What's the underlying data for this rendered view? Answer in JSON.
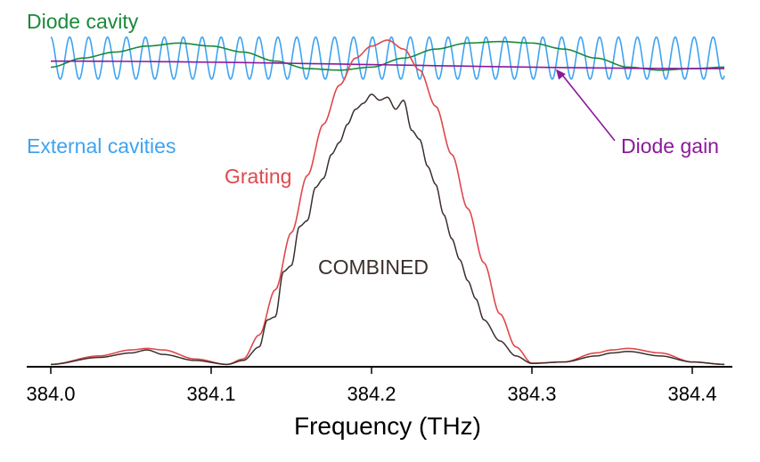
{
  "chart_data": {
    "type": "line",
    "xlabel": "Frequency (THz)",
    "xlim": [
      383.985,
      384.425
    ],
    "xticks": [
      "384.0",
      "384.1",
      "384.2",
      "384.3",
      "384.4"
    ],
    "xtick_values": [
      384.0,
      384.1,
      384.2,
      384.3,
      384.4
    ],
    "ylim": [
      0,
      1.08
    ],
    "grid": false,
    "colors": {
      "diode_cavity": "#1a8a3a",
      "external_cavities": "#3fa3f0",
      "diode_gain": "#8a1a9a",
      "grating": "#e0474c",
      "combined": "#3b302c",
      "axis": "#000000"
    },
    "series": [
      {
        "name": "Diode cavity",
        "description_values": "sinusoid, period ~0.19 THz, maxima near 384.09 and 384.28, minima near 384.18 and 384.38",
        "x": [
          384.0,
          384.02,
          384.04,
          384.06,
          384.08,
          384.1,
          384.12,
          384.14,
          384.16,
          384.18,
          384.2,
          384.22,
          384.24,
          384.26,
          384.28,
          384.3,
          384.32,
          384.34,
          384.36,
          384.38,
          384.4,
          384.42
        ],
        "values": [
          0.99,
          1.02,
          1.04,
          1.06,
          1.07,
          1.06,
          1.04,
          1.01,
          0.985,
          0.98,
          0.99,
          1.02,
          1.05,
          1.07,
          1.075,
          1.07,
          1.05,
          1.02,
          0.99,
          0.98,
          0.985,
          0.99
        ]
      },
      {
        "name": "External cavities",
        "description_values": "fast sinusoid, period ~0.0118 THz, between ~0.95 and ~1.09",
        "period_thz": 0.0118,
        "min": 0.95,
        "max": 1.09
      },
      {
        "name": "Diode gain",
        "x": [
          384.0,
          384.42
        ],
        "values": [
          1.01,
          0.985
        ]
      },
      {
        "name": "Grating",
        "x": [
          384.0,
          384.03,
          384.05,
          384.06,
          384.07,
          384.09,
          384.11,
          384.12,
          384.13,
          384.14,
          384.15,
          384.16,
          384.17,
          384.18,
          384.19,
          384.2,
          384.21,
          384.22,
          384.23,
          384.24,
          384.25,
          384.26,
          384.27,
          384.28,
          384.29,
          384.3,
          384.32,
          384.34,
          384.35,
          384.36,
          384.38,
          384.4,
          384.42
        ],
        "values": [
          0.002,
          0.03,
          0.05,
          0.055,
          0.05,
          0.02,
          0.002,
          0.02,
          0.1,
          0.25,
          0.44,
          0.63,
          0.8,
          0.93,
          1.02,
          1.06,
          1.08,
          1.05,
          0.98,
          0.86,
          0.7,
          0.52,
          0.34,
          0.17,
          0.06,
          0.006,
          0.01,
          0.04,
          0.05,
          0.055,
          0.04,
          0.01,
          0.002
        ]
      },
      {
        "name": "COMBINED",
        "x": [
          384.0,
          384.03,
          384.05,
          384.06,
          384.07,
          384.09,
          384.11,
          384.12,
          384.13,
          384.135,
          384.14,
          384.145,
          384.15,
          384.155,
          384.16,
          384.165,
          384.17,
          384.175,
          384.18,
          384.185,
          384.19,
          384.195,
          384.2,
          384.205,
          384.21,
          384.215,
          384.22,
          384.225,
          384.23,
          384.235,
          384.24,
          384.245,
          384.25,
          384.255,
          384.26,
          384.265,
          384.27,
          384.28,
          384.29,
          384.3,
          384.32,
          384.34,
          384.35,
          384.36,
          384.38,
          384.4,
          384.42
        ],
        "values": [
          0.002,
          0.025,
          0.04,
          0.05,
          0.035,
          0.015,
          0.002,
          0.015,
          0.06,
          0.15,
          0.16,
          0.31,
          0.33,
          0.46,
          0.48,
          0.59,
          0.62,
          0.7,
          0.74,
          0.8,
          0.85,
          0.87,
          0.9,
          0.88,
          0.89,
          0.85,
          0.88,
          0.78,
          0.75,
          0.66,
          0.6,
          0.5,
          0.42,
          0.35,
          0.28,
          0.22,
          0.15,
          0.08,
          0.03,
          0.005,
          0.01,
          0.03,
          0.04,
          0.045,
          0.03,
          0.01,
          0.002
        ]
      }
    ],
    "annotations": {
      "diode_cavity": "Diode cavity",
      "external_cavities": "External cavities",
      "diode_gain": "Diode gain",
      "grating": "Grating",
      "combined": "COMBINED"
    }
  }
}
